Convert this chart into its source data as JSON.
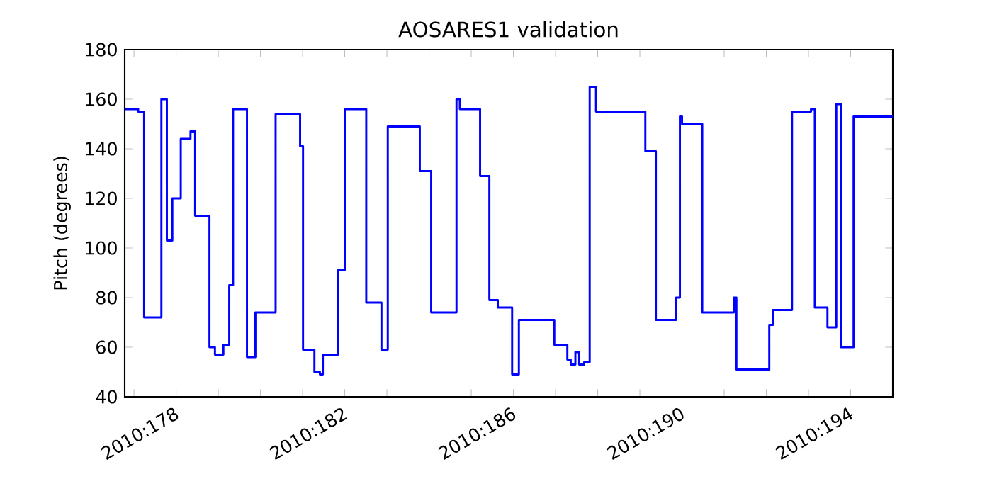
{
  "chart_data": {
    "type": "step",
    "title": "AOSARES1 validation",
    "ylabel": "Pitch (degrees)",
    "series": [
      {
        "color": "#0000ff",
        "x": [
          "2010-06-25T18:58",
          "2010-06-26T02:24",
          "2010-06-26T05:46",
          "2010-06-26T15:36",
          "2010-06-26T18:43",
          "2010-06-26T21:50",
          "2010-06-27T02:38",
          "2010-06-27T08:10",
          "2010-06-27T10:48",
          "2010-06-27T18:58",
          "2010-06-27T22:05",
          "2010-06-28T02:53",
          "2010-06-28T06:14",
          "2010-06-28T08:24",
          "2010-06-28T16:19",
          "2010-06-28T21:07",
          "2010-06-29T08:38",
          "2010-06-29T22:34",
          "2010-06-30T00:14",
          "2010-06-30T06:43",
          "2010-06-30T09:50",
          "2010-06-30T11:31",
          "2010-06-30T20:10",
          "2010-07-01T00:00",
          "2010-07-01T12:14",
          "2010-07-01T20:53",
          "2010-07-02T00:29",
          "2010-07-02T18:43",
          "2010-07-03T01:12",
          "2010-07-03T15:36",
          "2010-07-03T17:31",
          "2010-07-04T05:02",
          "2010-07-04T10:19",
          "2010-07-04T15:07",
          "2010-07-04T23:17",
          "2010-07-05T03:07",
          "2010-07-05T23:17",
          "2010-07-06T06:43",
          "2010-07-06T08:38",
          "2010-07-06T11:17",
          "2010-07-06T13:26",
          "2010-07-06T16:19",
          "2010-07-06T19:26",
          "2010-07-06T23:02",
          "2010-07-08T03:07",
          "2010-07-08T09:07",
          "2010-07-08T20:38",
          "2010-07-08T22:48",
          "2010-07-09T00:00",
          "2010-07-09T11:31",
          "2010-07-10T05:31",
          "2010-07-10T06:58",
          "2010-07-11T01:41",
          "2010-07-11T03:50",
          "2010-07-11T14:38",
          "2010-07-12T01:26",
          "2010-07-12T03:36",
          "2010-07-12T10:48",
          "2010-07-12T15:50",
          "2010-07-12T18:29",
          "2010-07-13T01:41",
          "2010-07-14T00:00"
        ],
        "values": [
          156,
          155,
          72,
          160,
          103,
          120,
          144,
          147,
          113,
          60,
          57,
          61,
          85,
          156,
          56,
          74,
          154,
          141,
          59,
          50,
          49,
          57,
          91,
          156,
          78,
          59,
          149,
          131,
          74,
          160,
          156,
          129,
          79,
          76,
          49,
          71,
          61,
          55,
          53,
          58,
          53,
          54,
          165,
          155,
          139,
          71,
          80,
          153,
          150,
          74,
          80,
          51,
          69,
          75,
          155,
          156,
          76,
          68,
          158,
          60,
          153,
          153
        ]
      }
    ],
    "xlim": [
      "2010-06-25T18:43",
      "2010-07-14"
    ],
    "ylim": [
      40,
      180
    ],
    "xticks": [
      {
        "value": "2010-06-26",
        "label": null
      },
      {
        "value": "2010-06-27",
        "label": "2010:178"
      },
      {
        "value": "2010-06-28",
        "label": null
      },
      {
        "value": "2010-06-29",
        "label": null
      },
      {
        "value": "2010-06-30",
        "label": null
      },
      {
        "value": "2010-07-01",
        "label": "2010:182"
      },
      {
        "value": "2010-07-02",
        "label": null
      },
      {
        "value": "2010-07-03",
        "label": null
      },
      {
        "value": "2010-07-04",
        "label": null
      },
      {
        "value": "2010-07-05",
        "label": "2010:186"
      },
      {
        "value": "2010-07-06",
        "label": null
      },
      {
        "value": "2010-07-07",
        "label": null
      },
      {
        "value": "2010-07-08",
        "label": null
      },
      {
        "value": "2010-07-09",
        "label": "2010:190"
      },
      {
        "value": "2010-07-10",
        "label": null
      },
      {
        "value": "2010-07-11",
        "label": null
      },
      {
        "value": "2010-07-12",
        "label": null
      },
      {
        "value": "2010-07-13",
        "label": "2010:194"
      },
      {
        "value": "2010-07-14",
        "label": null
      }
    ],
    "yticks": [
      40,
      60,
      80,
      100,
      120,
      140,
      160,
      180
    ],
    "grid": false,
    "marker": "none",
    "line_style": "solid"
  }
}
